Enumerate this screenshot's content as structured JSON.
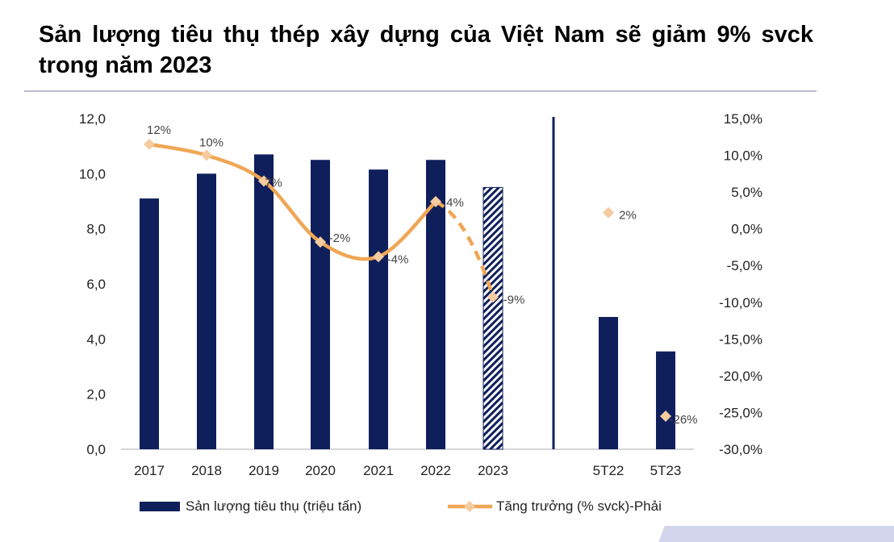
{
  "title": "Sản lượng tiêu thụ thép xây dựng của Việt Nam sẽ giảm 9% svck trong năm 2023",
  "colors": {
    "bar": "#0f1f5c",
    "line": "#f0a654",
    "marker": "#f5cb9f",
    "divider": "#b9bccf",
    "axis": "#c8c8c8",
    "text": "#222222"
  },
  "chart_data": {
    "type": "bar",
    "categories": [
      "2017",
      "2018",
      "2019",
      "2020",
      "2021",
      "2022",
      "2023",
      "5T22",
      "5T23"
    ],
    "series": [
      {
        "name": "Sản lượng tiêu thụ (triệu tấn)",
        "axis": "left",
        "type": "bar",
        "values": [
          9.1,
          10.0,
          10.7,
          10.5,
          10.15,
          10.5,
          9.5,
          4.8,
          3.55
        ],
        "hatched": [
          false,
          false,
          false,
          false,
          false,
          false,
          true,
          false,
          false
        ]
      },
      {
        "name": "Tăng trưởng (% svck)-Phải",
        "axis": "right",
        "type": "line",
        "values": [
          11.5,
          10.0,
          6.5,
          -1.8,
          -3.8,
          3.7,
          -9.3,
          2.2,
          -25.5
        ],
        "labels": [
          "12%",
          "10%",
          "7%",
          "-2%",
          "-4%",
          "4%",
          "-9%",
          "2%",
          "-26%"
        ]
      }
    ],
    "y_left": {
      "min": 0,
      "max": 12,
      "ticks": [
        "0,0",
        "2,0",
        "4,0",
        "6,0",
        "8,0",
        "10,0",
        "12,0"
      ]
    },
    "y_right": {
      "min": -30,
      "max": 15,
      "ticks": [
        "15,0%",
        "10,0%",
        "5,0%",
        "0,0%",
        "-5,0%",
        "-10,0%",
        "-15,0%",
        "-20,0%",
        "-25,0%",
        "-30,0%"
      ]
    },
    "legend": [
      "Sản lượng tiêu thụ (triệu tấn)",
      "Tăng trưởng (% svck)-Phải"
    ],
    "legend_position": "bottom"
  }
}
